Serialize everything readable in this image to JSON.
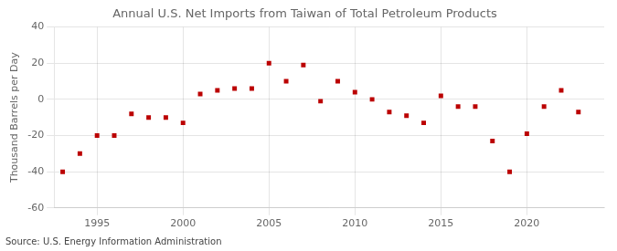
{
  "chart_data": {
    "type": "scatter",
    "title": "Annual U.S. Net Imports from Taiwan of Total Petroleum Products",
    "ylabel": "Thousand Barrels per Day",
    "annotation": "Source: U.S. Energy Information Administration",
    "x": [
      1993,
      1994,
      1995,
      1996,
      1997,
      1998,
      1999,
      2000,
      2001,
      2002,
      2003,
      2004,
      2005,
      2006,
      2007,
      2008,
      2009,
      2010,
      2011,
      2012,
      2013,
      2014,
      2015,
      2016,
      2017,
      2018,
      2019,
      2020,
      2021,
      2022,
      2023
    ],
    "values": [
      -40,
      -30,
      -20,
      -20,
      -8,
      -10,
      -10,
      -13,
      3,
      5,
      6,
      6,
      20,
      10,
      19,
      -1,
      10,
      4,
      0,
      -7,
      -9,
      -13,
      2,
      -4,
      -4,
      -23,
      -40,
      -19,
      -4,
      5,
      -7
    ],
    "color": "#bb0000",
    "marker": "square",
    "xlim": [
      1992.5,
      2024.5
    ],
    "xticks": [
      1995,
      2000,
      2005,
      2010,
      2015,
      2020
    ],
    "ylim": [
      -60,
      40
    ],
    "yticks": [
      -60,
      -40,
      -20,
      0,
      20,
      40
    ],
    "grid": true
  }
}
